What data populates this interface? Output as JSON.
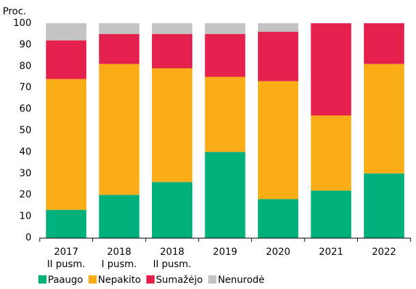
{
  "chart_data": {
    "type": "stacked_bar",
    "y_label": "Proc.",
    "categories": [
      [
        "2017",
        "II pusm."
      ],
      [
        "2018",
        "I pusm."
      ],
      [
        "2018",
        "II pusm."
      ],
      [
        "2019"
      ],
      [
        "2020"
      ],
      [
        "2021"
      ],
      [
        "2022"
      ]
    ],
    "series": [
      {
        "name": "Paaugo",
        "color": "#00b07b",
        "values": [
          13,
          20,
          26,
          40,
          18,
          22,
          30
        ]
      },
      {
        "name": "Nepakito",
        "color": "#fbad18",
        "values": [
          61,
          61,
          53,
          35,
          55,
          35,
          51
        ]
      },
      {
        "name": "Sumažėjo",
        "color": "#e4214c",
        "values": [
          18,
          14,
          16,
          20,
          23,
          43,
          19
        ]
      },
      {
        "name": "Nenurodė",
        "color": "#c3c3c3",
        "values": [
          8,
          5,
          5,
          5,
          4,
          0,
          0
        ]
      }
    ],
    "ylim": [
      0,
      100
    ],
    "yticks": [
      0,
      10,
      20,
      30,
      40,
      50,
      60,
      70,
      80,
      90,
      100
    ],
    "grid": false,
    "legend": "bottom"
  }
}
